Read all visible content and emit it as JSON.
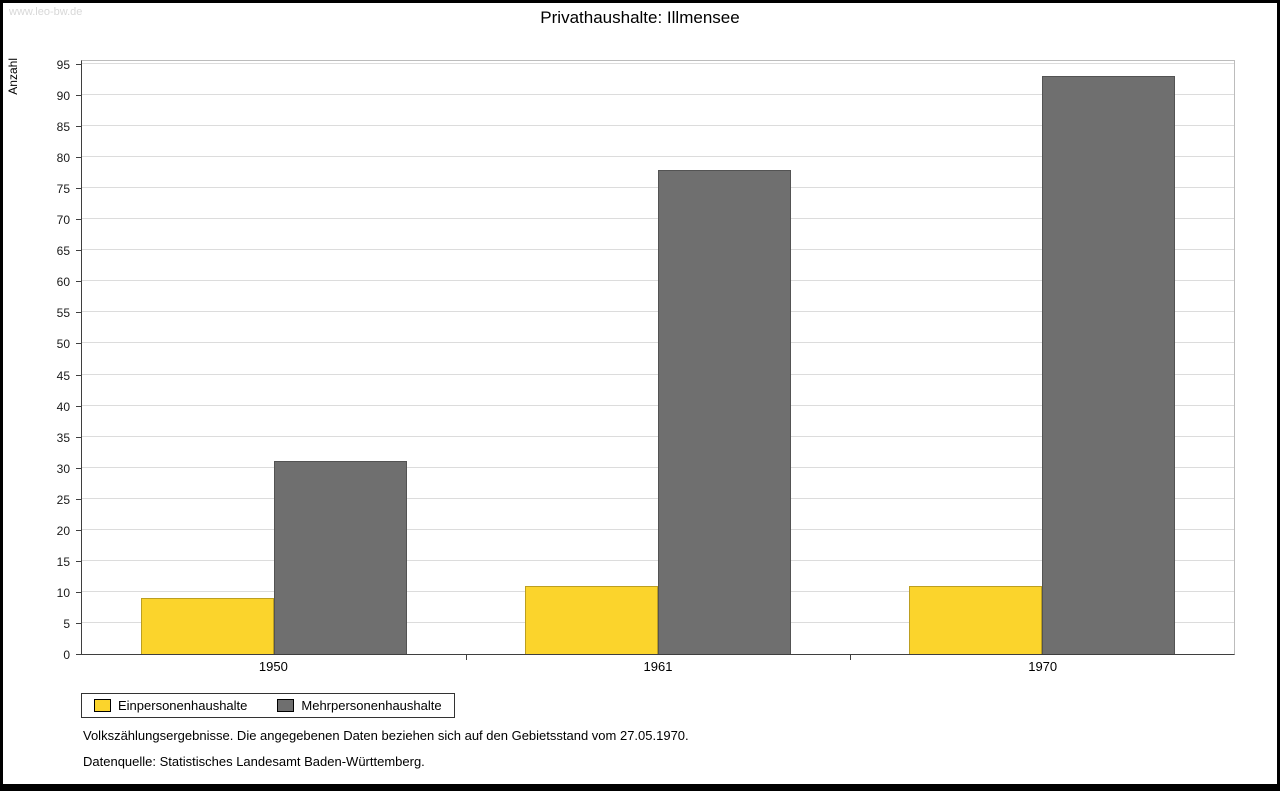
{
  "watermark": "www.leo-bw.de",
  "title": "Privathaushalte: Illmensee",
  "chart_data": {
    "type": "bar",
    "title": "Privathaushalte: Illmensee",
    "categories": [
      "1950",
      "1961",
      "1970"
    ],
    "series": [
      {
        "name": "Einpersonenhaushalte",
        "color": "#FBD42C",
        "values": [
          9,
          11,
          11
        ]
      },
      {
        "name": "Mehrpersonenhaushalte",
        "color": "#6F6F6F",
        "values": [
          31,
          78,
          93
        ]
      }
    ],
    "xlabel": "",
    "ylabel": "Anzahl",
    "ylim": [
      0,
      95
    ],
    "ytick_step": 5,
    "grid": true,
    "legend_position": "bottom-left"
  },
  "legend": {
    "items": [
      "Einpersonenhaushalte",
      "Mehrpersonenhaushalte"
    ]
  },
  "notes": [
    "Volkszählungsergebnisse. Die angegebenen Daten beziehen sich auf den Gebietsstand vom 27.05.1970.",
    "Datenquelle: Statistisches Landesamt Baden-Württemberg."
  ]
}
